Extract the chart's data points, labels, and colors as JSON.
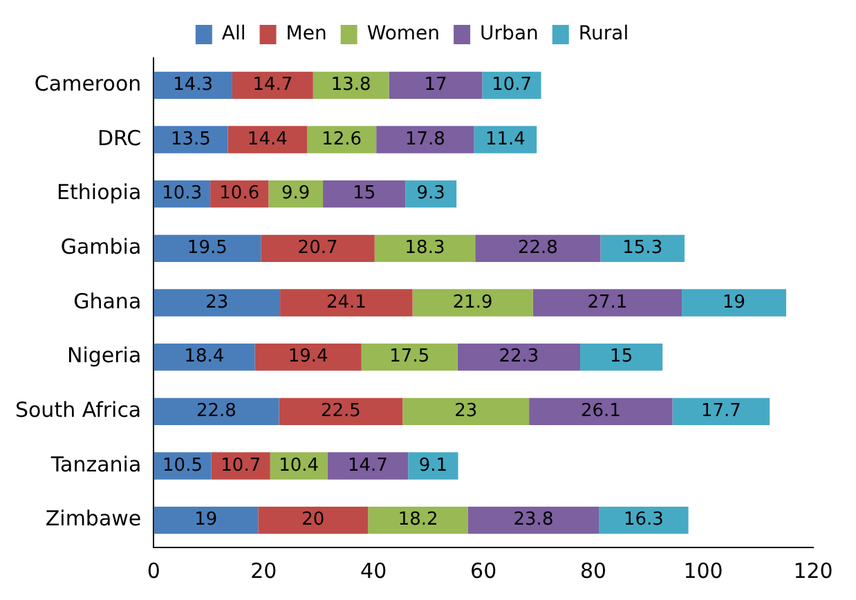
{
  "chart_data": {
    "type": "bar",
    "orientation": "horizontal",
    "stacked": true,
    "data_labels": true,
    "legend": "top",
    "grid": false,
    "categories": [
      "Cameroon",
      "DRC",
      "Ethiopia",
      "Gambia",
      "Ghana",
      "Nigeria",
      "South Africa",
      "Tanzania",
      "Zimbawe"
    ],
    "series": [
      {
        "name": "All",
        "color": "#4a7ebb",
        "values": [
          14.3,
          13.5,
          10.3,
          19.5,
          23,
          18.4,
          22.8,
          10.5,
          19
        ]
      },
      {
        "name": "Men",
        "color": "#be4b48",
        "values": [
          14.7,
          14.4,
          10.6,
          20.7,
          24.1,
          19.4,
          22.5,
          10.7,
          20
        ]
      },
      {
        "name": "Women",
        "color": "#98b954",
        "values": [
          13.8,
          12.6,
          9.9,
          18.3,
          21.9,
          17.5,
          23,
          10.4,
          18.2
        ]
      },
      {
        "name": "Urban",
        "color": "#7d60a0",
        "values": [
          17,
          17.8,
          15,
          22.8,
          27.1,
          22.3,
          26.1,
          14.7,
          23.8
        ]
      },
      {
        "name": "Rural",
        "color": "#46aac5",
        "values": [
          10.7,
          11.4,
          9.3,
          15.3,
          19,
          15,
          17.7,
          9.1,
          16.3
        ]
      }
    ],
    "xlim": [
      0,
      120
    ],
    "xticks": [
      0,
      20,
      40,
      60,
      80,
      100,
      120
    ]
  }
}
